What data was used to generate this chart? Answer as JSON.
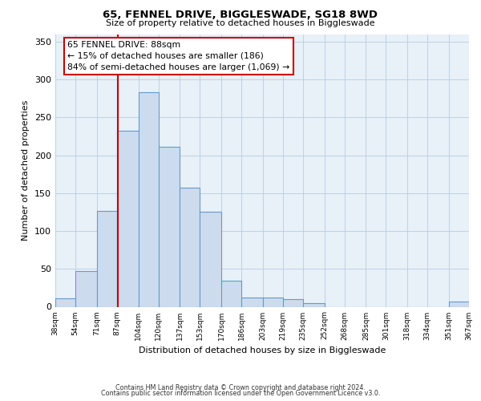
{
  "title": "65, FENNEL DRIVE, BIGGLESWADE, SG18 8WD",
  "subtitle": "Size of property relative to detached houses in Biggleswade",
  "xlabel": "Distribution of detached houses by size in Biggleswade",
  "ylabel": "Number of detached properties",
  "bin_edges": [
    38,
    54,
    71,
    87,
    104,
    120,
    137,
    153,
    170,
    186,
    203,
    219,
    235,
    252,
    268,
    285,
    301,
    318,
    334,
    351,
    367
  ],
  "bar_heights": [
    11,
    47,
    127,
    232,
    283,
    211,
    157,
    126,
    34,
    12,
    12,
    10,
    5,
    0,
    0,
    0,
    0,
    0,
    0,
    7
  ],
  "bar_color": "#ccdcee",
  "bar_edge_color": "#6699cc",
  "property_line_x": 88,
  "property_line_color": "#cc0000",
  "annotation_title": "65 FENNEL DRIVE: 88sqm",
  "annotation_line1": "← 15% of detached houses are smaller (186)",
  "annotation_line2": "84% of semi-detached houses are larger (1,069) →",
  "annotation_box_color": "#cc0000",
  "ylim": [
    0,
    360
  ],
  "yticks": [
    0,
    50,
    100,
    150,
    200,
    250,
    300,
    350
  ],
  "tick_labels": [
    "38sqm",
    "54sqm",
    "71sqm",
    "87sqm",
    "104sqm",
    "120sqm",
    "137sqm",
    "153sqm",
    "170sqm",
    "186sqm",
    "203sqm",
    "219sqm",
    "235sqm",
    "252sqm",
    "268sqm",
    "285sqm",
    "301sqm",
    "318sqm",
    "334sqm",
    "351sqm",
    "367sqm"
  ],
  "footer1": "Contains HM Land Registry data © Crown copyright and database right 2024.",
  "footer2": "Contains public sector information licensed under the Open Government Licence v3.0.",
  "background_color": "#ffffff",
  "plot_bg_color": "#e8f0f8",
  "grid_color": "#b8cde0",
  "title_fontsize": 9.5,
  "subtitle_fontsize": 8,
  "ylabel_fontsize": 8,
  "xlabel_fontsize": 8,
  "tick_fontsize": 6.5,
  "ytick_fontsize": 8,
  "annotation_fontsize": 7.8,
  "footer_fontsize": 5.8
}
